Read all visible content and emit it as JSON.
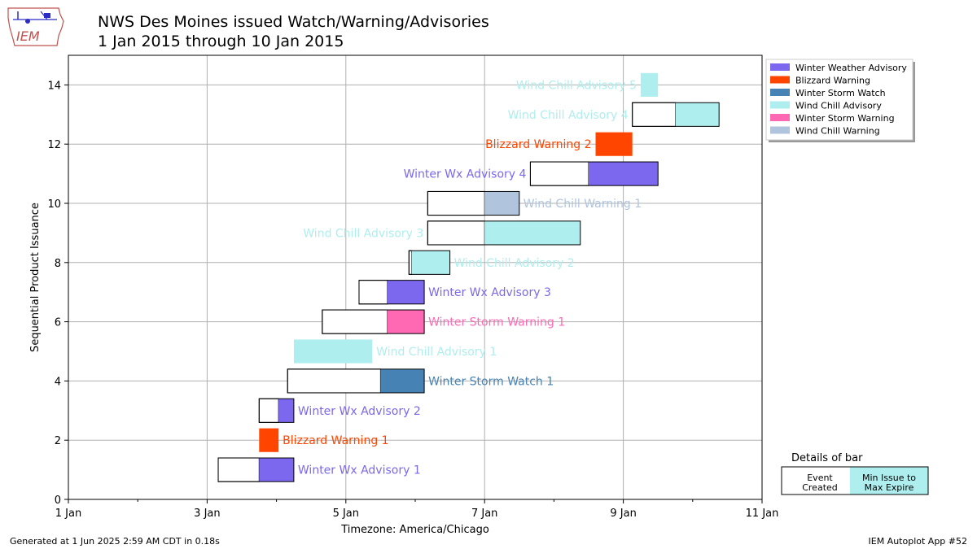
{
  "header": {
    "title_line1": "NWS Des Moines issued  Watch/Warning/Advisories",
    "title_line2": "1 Jan 2015 through 10 Jan 2015",
    "logo_text": "IEM"
  },
  "footer": {
    "generated": "Generated at 1 Jun 2025 2:59 AM CDT in 0.18s",
    "app": "IEM Autoplot App #52"
  },
  "colors": {
    "Winter Weather Advisory": "#7B68EE",
    "Blizzard Warning": "#FF4500",
    "Winter Storm Watch": "#4682B4",
    "Wind Chill Advisory": "#AFEEEE",
    "Winter Storm Warning": "#FF69B4",
    "Wind Chill Warning": "#B0C4DE"
  },
  "chart_data": {
    "type": "bar",
    "orientation": "horizontal-timeline",
    "xlabel": "Timezone: America/Chicago",
    "ylabel": "Sequential Product Issuance",
    "xlim_days": [
      0,
      10
    ],
    "ylim": [
      0,
      15
    ],
    "xticks": [
      {
        "day": 0,
        "label": "1 Jan"
      },
      {
        "day": 2,
        "label": "3 Jan"
      },
      {
        "day": 4,
        "label": "5 Jan"
      },
      {
        "day": 6,
        "label": "7 Jan"
      },
      {
        "day": 8,
        "label": "9 Jan"
      },
      {
        "day": 10,
        "label": "11 Jan"
      }
    ],
    "yticks": [
      0,
      2,
      4,
      6,
      8,
      10,
      12,
      14
    ],
    "grid": true,
    "legend_position": "outside-top-right",
    "legend": [
      "Winter Weather Advisory",
      "Blizzard Warning",
      "Winter Storm Watch",
      "Wind Chill Advisory",
      "Winter Storm Warning",
      "Wind Chill Warning"
    ],
    "bars": [
      {
        "y": 1,
        "event_created": 2.16,
        "issue": 2.75,
        "expire": 3.25,
        "phenomena": "Winter Weather Advisory",
        "label": "Winter Wx Advisory 1",
        "label_side": "right"
      },
      {
        "y": 2,
        "event_created": 2.75,
        "issue": 2.75,
        "expire": 3.03,
        "phenomena": "Blizzard Warning",
        "label": "Blizzard Warning 1",
        "label_side": "right"
      },
      {
        "y": 3,
        "event_created": 2.75,
        "issue": 3.03,
        "expire": 3.25,
        "phenomena": "Winter Weather Advisory",
        "label": "Winter Wx Advisory 2",
        "label_side": "right"
      },
      {
        "y": 4,
        "event_created": 3.16,
        "issue": 4.5,
        "expire": 5.13,
        "phenomena": "Winter Storm Watch",
        "label": "Winter Storm Watch 1",
        "label_side": "right"
      },
      {
        "y": 5,
        "event_created": 3.25,
        "issue": 3.25,
        "expire": 4.38,
        "phenomena": "Wind Chill Advisory",
        "label": "Wind Chill Advisory 1",
        "label_side": "right"
      },
      {
        "y": 6,
        "event_created": 3.66,
        "issue": 4.6,
        "expire": 5.13,
        "phenomena": "Winter Storm Warning",
        "label": "Winter Storm Warning 1",
        "label_side": "right"
      },
      {
        "y": 7,
        "event_created": 4.19,
        "issue": 4.6,
        "expire": 5.13,
        "phenomena": "Winter Weather Advisory",
        "label": "Winter Wx Advisory 3",
        "label_side": "right"
      },
      {
        "y": 8,
        "event_created": 4.91,
        "issue": 4.95,
        "expire": 5.5,
        "phenomena": "Wind Chill Advisory",
        "label": "Wind Chill Advisory 2",
        "label_side": "right"
      },
      {
        "y": 9,
        "event_created": 5.18,
        "issue": 6.0,
        "expire": 7.38,
        "phenomena": "Wind Chill Advisory",
        "label": "Wind Chill Advisory 3",
        "label_side": "left"
      },
      {
        "y": 10,
        "event_created": 5.18,
        "issue": 6.0,
        "expire": 6.5,
        "phenomena": "Wind Chill Warning",
        "label": "Wind Chill Warning 1",
        "label_side": "right"
      },
      {
        "y": 11,
        "event_created": 6.66,
        "issue": 7.5,
        "expire": 8.5,
        "phenomena": "Winter Weather Advisory",
        "label": "Winter Wx Advisory 4",
        "label_side": "left"
      },
      {
        "y": 12,
        "event_created": 7.6,
        "issue": 7.6,
        "expire": 8.13,
        "phenomena": "Blizzard Warning",
        "label": "Blizzard Warning 2",
        "label_side": "left"
      },
      {
        "y": 13,
        "event_created": 8.13,
        "issue": 8.75,
        "expire": 9.38,
        "phenomena": "Wind Chill Advisory",
        "label": "Wind Chill Advisory 4",
        "label_side": "left"
      },
      {
        "y": 14,
        "event_created": 8.25,
        "issue": 8.25,
        "expire": 8.5,
        "phenomena": "Wind Chill Advisory",
        "label": "Wind Chill Advisory 5",
        "label_side": "left"
      }
    ],
    "details_box": {
      "title": "Details of bar",
      "left_label_line1": "Event",
      "left_label_line2": "Created",
      "right_label_line1": "Min Issue to",
      "right_label_line2": "Max Expire"
    }
  }
}
